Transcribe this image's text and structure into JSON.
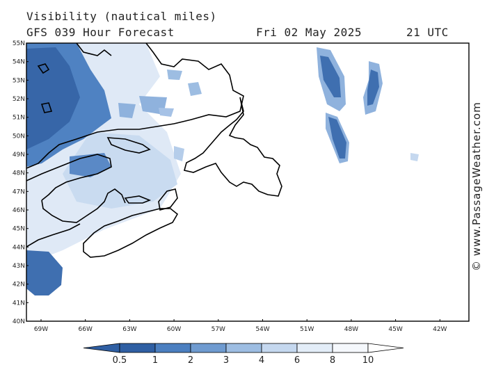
{
  "header": {
    "title": "Visibility (nautical miles)",
    "model_line": "GFS 039 Hour Forecast",
    "date": "Fri 02 May 2025",
    "time": "21 UTC"
  },
  "map": {
    "lat_labels": [
      "55N",
      "54N",
      "53N",
      "52N",
      "51N",
      "50N",
      "49N",
      "48N",
      "47N",
      "46N",
      "45N",
      "44N",
      "43N",
      "42N",
      "41N",
      "40N"
    ],
    "lon_labels": [
      "69W",
      "66W",
      "63W",
      "60W",
      "57W",
      "54W",
      "51W",
      "48W",
      "45W",
      "42W"
    ],
    "shade_colors": [
      "#2f5fa3",
      "#4b7fc0",
      "#6f9bd0",
      "#9dbde2",
      "#c5d8ef",
      "#e3edf8",
      "#f5f8fc"
    ]
  },
  "colorbar": {
    "tick_labels": [
      "0.5",
      "1",
      "2",
      "3",
      "4",
      "6",
      "8",
      "10"
    ]
  },
  "credit": "© www.PassageWeather.com"
}
